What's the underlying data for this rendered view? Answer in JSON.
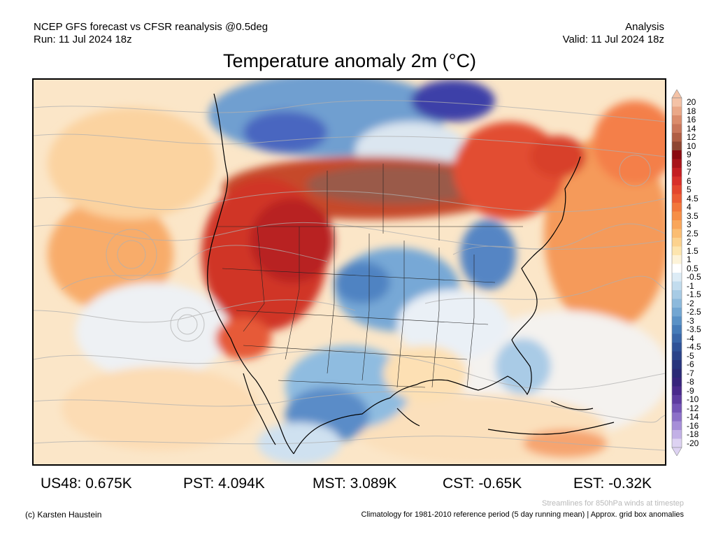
{
  "header": {
    "line1": "NCEP GFS forecast vs CFSR reanalysis @0.5deg",
    "line2": "Run: 11 Jul 2024 18z",
    "right1": "Analysis",
    "right2": "Valid: 11 Jul 2024 18z"
  },
  "title": "Temperature anomaly 2m (°C)",
  "colorbar": {
    "labels": [
      "20",
      "18",
      "16",
      "14",
      "12",
      "10",
      "9",
      "8",
      "7",
      "6",
      "5",
      "4.5",
      "4",
      "3.5",
      "3",
      "2.5",
      "2",
      "1.5",
      "1",
      "0.5",
      "-0.5",
      "-1",
      "-1.5",
      "-2",
      "-2.5",
      "-3",
      "-3.5",
      "-4",
      "-4.5",
      "-5",
      "-6",
      "-7",
      "-8",
      "-9",
      "-10",
      "-12",
      "-14",
      "-16",
      "-18",
      "-20"
    ],
    "colors": [
      "#f4c2a6",
      "#eaa888",
      "#db8c6c",
      "#c9765a",
      "#b05e44",
      "#8e4632",
      "#8a0a10",
      "#a8141a",
      "#c41e22",
      "#d8302a",
      "#e4462e",
      "#ec5c34",
      "#f2773c",
      "#f68f48",
      "#f9a65a",
      "#fbbd72",
      "#fcd28e",
      "#fde5ae",
      "#fdf3d8",
      "#ffffff",
      "#ddecf6",
      "#c2dcee",
      "#a7cbe5",
      "#8cb9dc",
      "#72a6d2",
      "#5991c6",
      "#457bb8",
      "#3966a8",
      "#2f5297",
      "#2a4288",
      "#27347c",
      "#2a2a76",
      "#37247c",
      "#4a2a8c",
      "#5e3ca0",
      "#7454b6",
      "#8c70c8",
      "#a68ed8",
      "#c2b0e6",
      "#ddd2f2"
    ]
  },
  "stats": [
    {
      "label": "US48: 0.675K"
    },
    {
      "label": "PST: 4.094K"
    },
    {
      "label": "MST: 3.089K"
    },
    {
      "label": "CST: -0.65K"
    },
    {
      "label": "EST: -0.32K"
    }
  ],
  "footer": {
    "credit": "(c) Karsten Haustein",
    "streamlines": "Streamlines for 850hPa winds at timestep",
    "climatology": "Climatology for 1981-2010 reference period (5 day running mean) | Approx. grid box anomalies"
  }
}
